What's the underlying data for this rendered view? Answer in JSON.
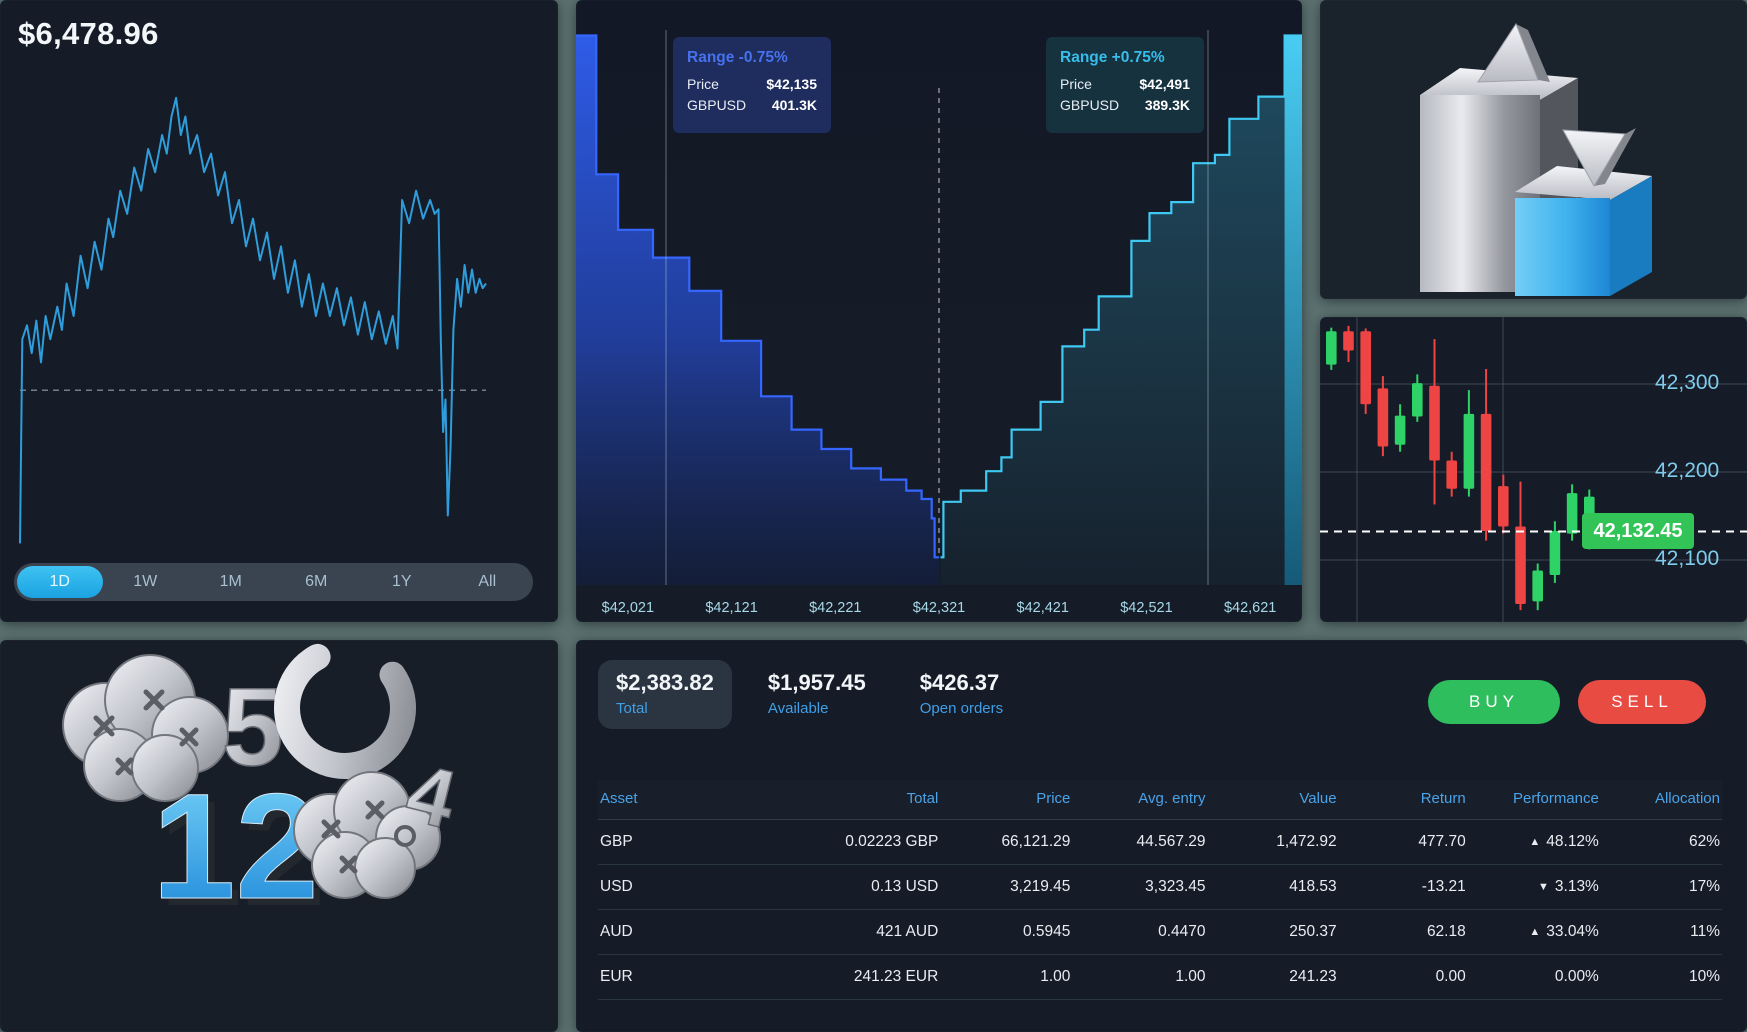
{
  "balance_panel": {
    "balance": "$6,478.96",
    "time_ranges": [
      "1D",
      "1W",
      "1M",
      "6M",
      "1Y",
      "All"
    ],
    "active_range": "1D"
  },
  "depth_panel": {
    "bid_tooltip": {
      "range_label": "Range -0.75%",
      "price_label": "Price",
      "price": "$42,135",
      "pair_label": "GBPUSD",
      "volume": "401.3K"
    },
    "ask_tooltip": {
      "range_label": "Range +0.75%",
      "price_label": "Price",
      "price": "$42,491",
      "pair_label": "GBPUSD",
      "volume": "389.3K"
    },
    "x_labels": [
      "$42,021",
      "$42,121",
      "$42,221",
      "$42,321",
      "$42,421",
      "$42,521",
      "$42,621"
    ]
  },
  "candle_panel": {
    "y_labels": [
      "42,300",
      "42,200",
      "42,100"
    ],
    "last_price": "42,132.45"
  },
  "account_panel": {
    "summary": [
      {
        "value": "$2,383.82",
        "label": "Total",
        "highlight": true
      },
      {
        "value": "$1,957.45",
        "label": "Available",
        "highlight": false
      },
      {
        "value": "$426.37",
        "label": "Open orders",
        "highlight": false
      }
    ],
    "buy_label": "BUY",
    "sell_label": "SELL",
    "table": {
      "columns": [
        "Asset",
        "Total",
        "Price",
        "Avg. entry",
        "Value",
        "Return",
        "Performance",
        "Allocation"
      ],
      "rows": [
        {
          "asset": "GBP",
          "total": "0.02223 GBP",
          "price": "66,121.29",
          "avg_entry": "44.567.29",
          "value": "1,472.92",
          "return": "477.70",
          "performance": "48.12%",
          "direction": "up",
          "allocation": "62%"
        },
        {
          "asset": "USD",
          "total": "0.13 USD",
          "price": "3,219.45",
          "avg_entry": "3,323.45",
          "value": "418.53",
          "return": "-13.21",
          "performance": "3.13%",
          "direction": "down",
          "allocation": "17%"
        },
        {
          "asset": "AUD",
          "total": "421 AUD",
          "price": "0.5945",
          "avg_entry": "0.4470",
          "value": "250.37",
          "return": "62.18",
          "performance": "33.04%",
          "direction": "up",
          "allocation": "11%"
        },
        {
          "asset": "EUR",
          "total": "241.23 EUR",
          "price": "1.00",
          "avg_entry": "1.00",
          "value": "241.23",
          "return": "0.00",
          "performance": "0.00%",
          "direction": "flat",
          "allocation": "10%"
        }
      ]
    }
  },
  "colors": {
    "gutter": "#5d7371",
    "panel_bg": "#151c27",
    "sparkline_blue": "#2f9ddb",
    "bid_blue": "#3060f2",
    "ask_cyan": "#3dc7f0",
    "candle_up_green": "#2fd266",
    "candle_down_red": "#ef4444",
    "badge_green": "#32c456",
    "buy_green": "#2fbe5d",
    "sell_red": "#e84b42",
    "header_blue": "#4aa3e8",
    "perf_up": "#27c98a",
    "perf_down": "#e8534a"
  },
  "chart_data": [
    {
      "id": "portfolio_sparkline",
      "type": "line",
      "title": "Portfolio value (1D)",
      "current_value": 6478.96,
      "note": "x = % of day, v = % of plot height",
      "points": [
        [
          0,
          1
        ],
        [
          0.5,
          45
        ],
        [
          1.5,
          48
        ],
        [
          2.5,
          42
        ],
        [
          3.5,
          49
        ],
        [
          4.5,
          40
        ],
        [
          5.5,
          50
        ],
        [
          6.5,
          45
        ],
        [
          8,
          52
        ],
        [
          9,
          47
        ],
        [
          10,
          57
        ],
        [
          11.5,
          50
        ],
        [
          13,
          63
        ],
        [
          14.5,
          56
        ],
        [
          16,
          66
        ],
        [
          17.5,
          60
        ],
        [
          19,
          71
        ],
        [
          20,
          67
        ],
        [
          21.5,
          77
        ],
        [
          23,
          72
        ],
        [
          24.5,
          82
        ],
        [
          26,
          77
        ],
        [
          27.5,
          86
        ],
        [
          29,
          81
        ],
        [
          30.5,
          89
        ],
        [
          31.5,
          85
        ],
        [
          32.5,
          93
        ],
        [
          33.5,
          97
        ],
        [
          34.5,
          89
        ],
        [
          35.5,
          93
        ],
        [
          36.5,
          85
        ],
        [
          38,
          89
        ],
        [
          39.5,
          81
        ],
        [
          41,
          85
        ],
        [
          42.5,
          76
        ],
        [
          44,
          81
        ],
        [
          45.5,
          70
        ],
        [
          47,
          75
        ],
        [
          48.5,
          65
        ],
        [
          50,
          71
        ],
        [
          51.5,
          62
        ],
        [
          53,
          68
        ],
        [
          54.5,
          58
        ],
        [
          56,
          65
        ],
        [
          57.5,
          55
        ],
        [
          59,
          62
        ],
        [
          60.5,
          52
        ],
        [
          62,
          59
        ],
        [
          63.5,
          50
        ],
        [
          65,
          57
        ],
        [
          66.5,
          50
        ],
        [
          68,
          56
        ],
        [
          69.5,
          48
        ],
        [
          71,
          54
        ],
        [
          72.5,
          46
        ],
        [
          74,
          53
        ],
        [
          75.5,
          45
        ],
        [
          77,
          51
        ],
        [
          78.5,
          44
        ],
        [
          80,
          50
        ],
        [
          81,
          43
        ],
        [
          82,
          75
        ],
        [
          83.5,
          70
        ],
        [
          85,
          77
        ],
        [
          86.5,
          71
        ],
        [
          88,
          75
        ],
        [
          89,
          72
        ],
        [
          89.8,
          73
        ],
        [
          90.3,
          45
        ],
        [
          90.8,
          25
        ],
        [
          91.3,
          32
        ],
        [
          91.8,
          7
        ],
        [
          92.4,
          22
        ],
        [
          93,
          47
        ],
        [
          93.8,
          58
        ],
        [
          94.6,
          52
        ],
        [
          95.4,
          61
        ],
        [
          96.2,
          55
        ],
        [
          97,
          60
        ],
        [
          97.8,
          55
        ],
        [
          98.6,
          58
        ],
        [
          99.3,
          56
        ],
        [
          100,
          57
        ]
      ],
      "dashed_reference_level": 34
    },
    {
      "id": "order_book_depth",
      "type": "area",
      "subtype": "depth-steps",
      "x_axis_labels": [
        "$42,021",
        "$42,121",
        "$42,221",
        "$42,321",
        "$42,421",
        "$42,521",
        "$42,621"
      ],
      "bid_marker": {
        "range": "-0.75%",
        "price": "$42,135",
        "pair": "GBPUSD",
        "volume": "401.3K"
      },
      "ask_marker": {
        "range": "+0.75%",
        "price": "$42,491",
        "pair": "GBPUSD",
        "volume": "389.3K"
      },
      "note": "steps as [x % across plot, cumulative volume % of plot height]",
      "bids": [
        [
          0,
          99
        ],
        [
          2.8,
          74
        ],
        [
          5.8,
          64
        ],
        [
          10.6,
          59
        ],
        [
          15.6,
          53
        ],
        [
          20,
          44
        ],
        [
          25.5,
          34
        ],
        [
          29.7,
          28
        ],
        [
          33.8,
          24.5
        ],
        [
          37.9,
          21
        ],
        [
          42,
          19
        ],
        [
          45.5,
          17
        ],
        [
          47.6,
          15.5
        ],
        [
          49,
          12
        ],
        [
          49.4,
          5
        ],
        [
          50,
          5
        ]
      ],
      "asks": [
        [
          50.2,
          5
        ],
        [
          50.6,
          15
        ],
        [
          53,
          17
        ],
        [
          56.5,
          20.5
        ],
        [
          58.6,
          23
        ],
        [
          60,
          28
        ],
        [
          64,
          33
        ],
        [
          67,
          43
        ],
        [
          70,
          46
        ],
        [
          72,
          52
        ],
        [
          76.5,
          62
        ],
        [
          79,
          67
        ],
        [
          82,
          69
        ],
        [
          85,
          76
        ],
        [
          88,
          77.5
        ],
        [
          90,
          84
        ],
        [
          94,
          88
        ],
        [
          97.6,
          99
        ],
        [
          100,
          99
        ]
      ]
    },
    {
      "id": "gbpusd_candles",
      "type": "candlestick",
      "y_axis_ticks": [
        42300,
        42200,
        42100
      ],
      "last_price": 42132.45,
      "candles": [
        {
          "open": 42322,
          "high": 42364,
          "low": 42316,
          "close": 42360
        },
        {
          "open": 42360,
          "high": 42366,
          "low": 42325,
          "close": 42338
        },
        {
          "open": 42360,
          "high": 42363,
          "low": 42266,
          "close": 42277
        },
        {
          "open": 42295,
          "high": 42309,
          "low": 42218,
          "close": 42229
        },
        {
          "open": 42231,
          "high": 42277,
          "low": 42223,
          "close": 42264
        },
        {
          "open": 42263,
          "high": 42311,
          "low": 42257,
          "close": 42301
        },
        {
          "open": 42298,
          "high": 42351,
          "low": 42163,
          "close": 42213
        },
        {
          "open": 42213,
          "high": 42223,
          "low": 42172,
          "close": 42181
        },
        {
          "open": 42181,
          "high": 42293,
          "low": 42172,
          "close": 42266
        },
        {
          "open": 42266,
          "high": 42317,
          "low": 42122,
          "close": 42133
        },
        {
          "open": 42184,
          "high": 42197,
          "low": 42130,
          "close": 42138
        },
        {
          "open": 42138,
          "high": 42189,
          "low": 42043,
          "close": 42050
        },
        {
          "open": 42053,
          "high": 42096,
          "low": 42043,
          "close": 42088
        },
        {
          "open": 42083,
          "high": 42144,
          "low": 42074,
          "close": 42133
        },
        {
          "open": 42130,
          "high": 42186,
          "low": 42122,
          "close": 42176
        },
        {
          "open": 42120,
          "high": 42180,
          "low": 42112,
          "close": 42172
        }
      ]
    }
  ]
}
